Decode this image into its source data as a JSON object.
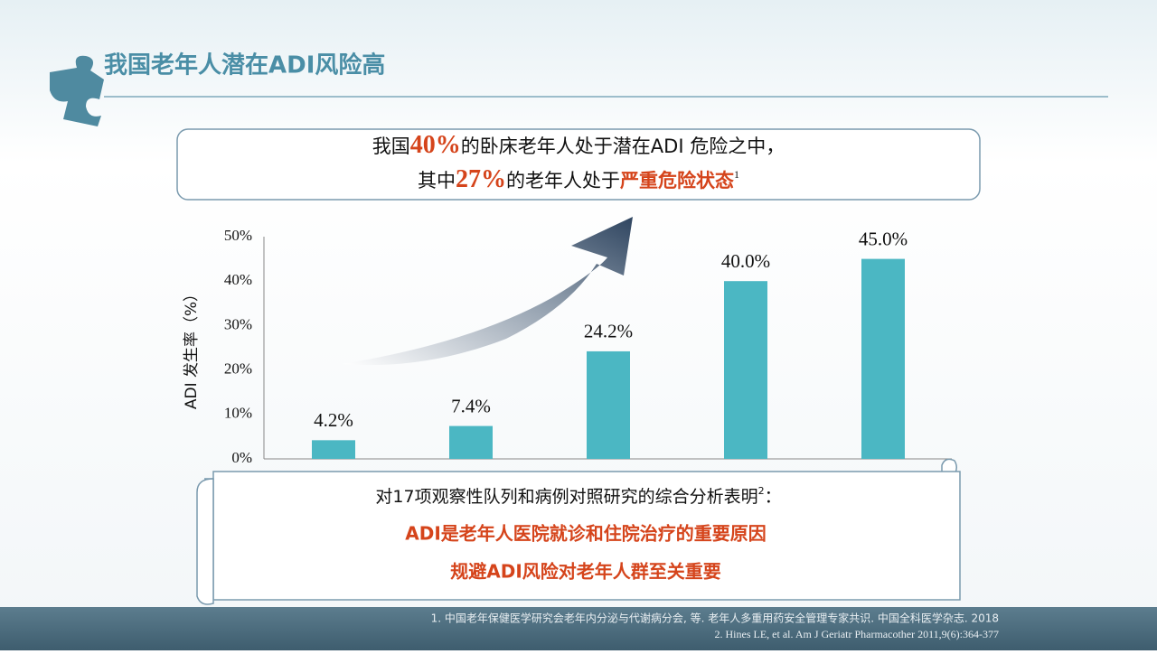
{
  "title": "我国老年人潜在ADI风险高",
  "callout": {
    "lines": [
      [
        "我国",
        "40%",
        "的卧床老年人处于潜在ADI 危险之中，"
      ],
      [
        "其中",
        "27%",
        "的老年人处于",
        "严重危险状态",
        "1"
      ]
    ]
  },
  "chart_data": {
    "type": "bar",
    "y_label": "ADI 发生率（%）",
    "categories": [
      null,
      null,
      null,
      null,
      null
    ],
    "values": [
      4.2,
      7.4,
      24.2,
      40.0,
      45.0
    ],
    "value_labels": [
      "4.2%",
      "7.4%",
      "24.2%",
      "40.0%",
      "45.0%"
    ],
    "color": "#4bb7c3",
    "ylim": [
      0,
      50
    ],
    "yticks": [
      {
        "value": 0,
        "label": "0%"
      },
      {
        "value": 10,
        "label": "10%"
      },
      {
        "value": 20,
        "label": "20%"
      },
      {
        "value": 30,
        "label": "30%"
      },
      {
        "value": 40,
        "label": "40%"
      },
      {
        "value": 50,
        "label": "50%"
      }
    ],
    "grid": false
  },
  "note": {
    "lines": [
      [
        "对17项观察性队列和病例对照研究的综合分析表明",
        "2",
        "："
      ],
      [
        "ADI是老年人医院就诊和住院治疗的重要原因"
      ],
      [
        "规避ADI风险对老年人群至关重要"
      ]
    ]
  },
  "references": [
    "1. 中国老年保健医学研究会老年内分泌与代谢病分会, 等. 老年人多重用药安全管理专家共识. 中国全科医学杂志. 2018",
    "2. Hines LE, et al. Am J Geriatr Pharmacother 2011,9(6):364-377"
  ]
}
